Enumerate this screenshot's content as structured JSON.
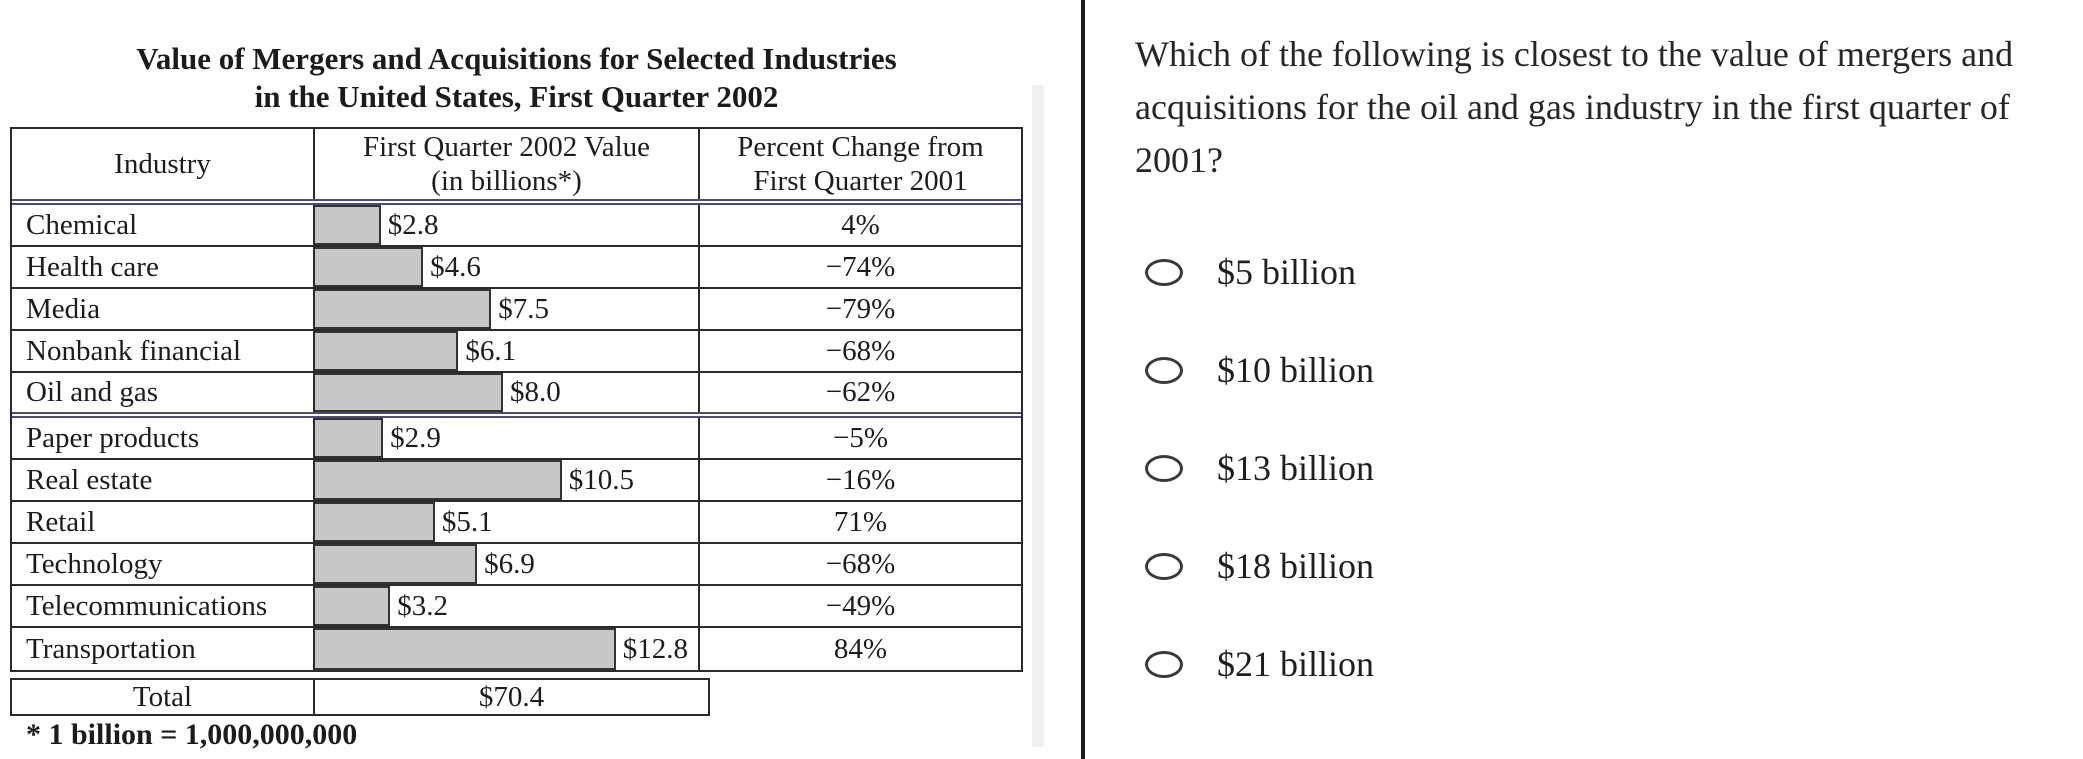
{
  "left_panel": {
    "title_line1": "Value of Mergers and Acquisitions for Selected Industries",
    "title_line2": "in the United States, First Quarter 2002",
    "table": {
      "headers": {
        "industry": "Industry",
        "value_line1": "First Quarter 2002 Value",
        "value_line2": "(in billions*)",
        "percent_line1": "Percent Change from",
        "percent_line2": "First Quarter 2001"
      },
      "rows": [
        {
          "industry": "Chemical",
          "value": 2.8,
          "value_label": "$2.8",
          "percent": "4%"
        },
        {
          "industry": "Health care",
          "value": 4.6,
          "value_label": "$4.6",
          "percent": "−74%"
        },
        {
          "industry": "Media",
          "value": 7.5,
          "value_label": "$7.5",
          "percent": "−79%"
        },
        {
          "industry": "Nonbank financial",
          "value": 6.1,
          "value_label": "$6.1",
          "percent": "−68%"
        },
        {
          "industry": "Oil and gas",
          "value": 8.0,
          "value_label": "$8.0",
          "percent": "−62%"
        },
        {
          "industry": "Paper products",
          "value": 2.9,
          "value_label": "$2.9",
          "percent": "−5%"
        },
        {
          "industry": "Real estate",
          "value": 10.5,
          "value_label": "$10.5",
          "percent": "−16%"
        },
        {
          "industry": "Retail",
          "value": 5.1,
          "value_label": "$5.1",
          "percent": "71%"
        },
        {
          "industry": "Technology",
          "value": 6.9,
          "value_label": "$6.9",
          "percent": "−68%"
        },
        {
          "industry": "Telecommunications",
          "value": 3.2,
          "value_label": "$3.2",
          "percent": "−49%"
        },
        {
          "industry": "Transportation",
          "value": 12.8,
          "value_label": "$12.8",
          "percent": "84%"
        }
      ],
      "total_label": "Total",
      "total_value": "$70.4"
    },
    "footnote": "* 1 billion = 1,000,000,000"
  },
  "question_panel": {
    "question_lines": [
      "Which of the following is closest to the value of mergers and",
      "acquisitions for the oil and gas industry in the first quarter of",
      "2001?"
    ],
    "options": [
      "$5 billion",
      "$10 billion",
      "$13 billion",
      "$18 billion",
      "$21 billion"
    ]
  },
  "chart_data": {
    "type": "bar",
    "title": "Value of Mergers and Acquisitions for Selected Industries in the United States, First Quarter 2002",
    "categories": [
      "Chemical",
      "Health care",
      "Media",
      "Nonbank financial",
      "Oil and gas",
      "Paper products",
      "Real estate",
      "Retail",
      "Technology",
      "Telecommunications",
      "Transportation"
    ],
    "series": [
      {
        "name": "First Quarter 2002 Value (in billions*)",
        "values": [
          2.8,
          4.6,
          7.5,
          6.1,
          8.0,
          2.9,
          10.5,
          5.1,
          6.9,
          3.2,
          12.8
        ]
      },
      {
        "name": "Percent Change from First Quarter 2001",
        "values": [
          4,
          -74,
          -79,
          -68,
          -62,
          -5,
          -16,
          71,
          -68,
          -49,
          84
        ]
      }
    ],
    "total": 70.4,
    "unit": "billions of dollars",
    "footnote": "* 1 billion = 1,000,000,000",
    "layout": "horizontal bars embedded in table rows, bar labels at bar ends, grid on"
  },
  "colors": {
    "bar_fill": "#c7c7c9",
    "table_border": "#2a2a2a",
    "group_rule": "#4c4c74",
    "pane_divider": "#1c1c1c"
  }
}
